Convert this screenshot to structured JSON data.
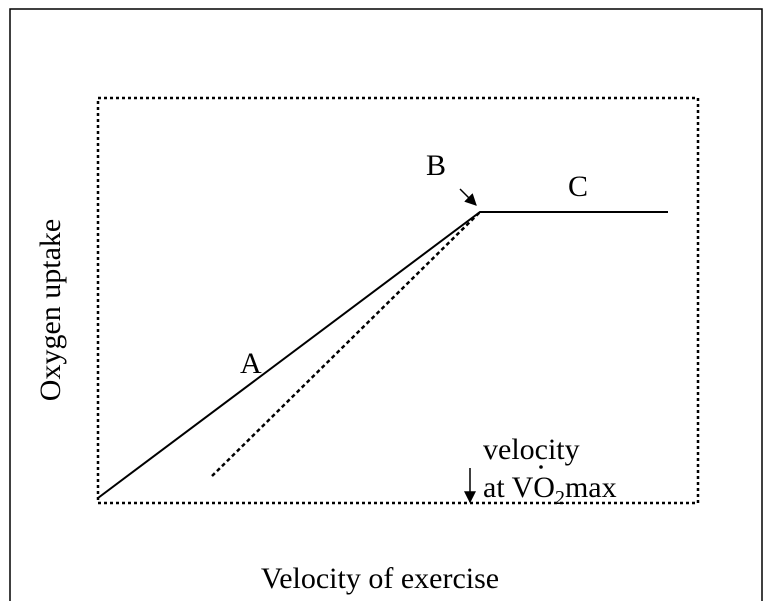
{
  "y_axis_label": "Oxygen uptake",
  "x_axis_label": "Velocity of exercise",
  "labels": {
    "a": "A",
    "b": "B",
    "c": "C"
  },
  "annotation": {
    "line1": "velocity",
    "prefix": "at V",
    "mid": "O",
    "sub": "2",
    "suffix": "max"
  }
}
